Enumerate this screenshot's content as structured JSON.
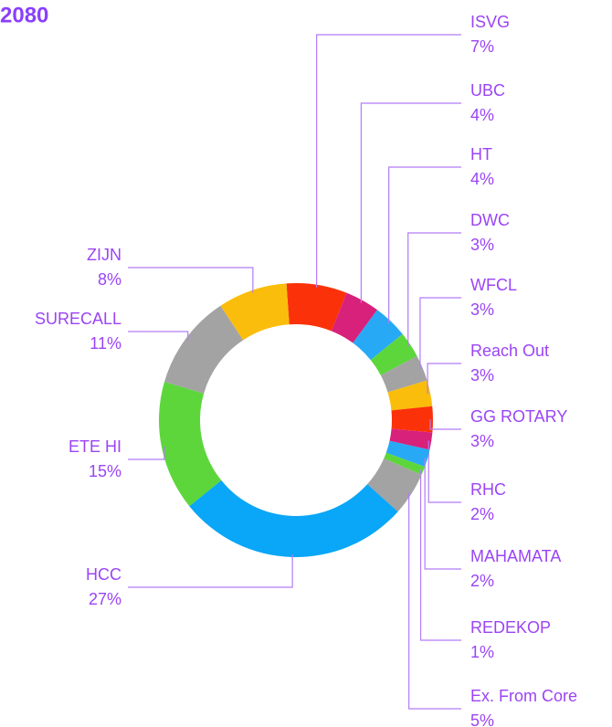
{
  "chart_data": {
    "type": "donut",
    "title": "2080",
    "categories": [
      "ISVG",
      "UBC",
      "HT",
      "DWC",
      "WFCL",
      "Reach Out",
      "GG ROTARY",
      "RHC",
      "MAHAMATA",
      "REDEKOP",
      "Ex. From Core",
      "HCC",
      "ETE HI",
      "SURECALL",
      "ZIJN"
    ],
    "values": [
      7,
      4,
      4,
      3,
      3,
      3,
      3,
      2,
      2,
      1,
      5,
      27,
      15,
      11,
      8
    ],
    "value_labels": [
      "7%",
      "4%",
      "4%",
      "3%",
      "3%",
      "3%",
      "3%",
      "2%",
      "2%",
      "1%",
      "5%",
      "27%",
      "15%",
      "11%",
      "8%"
    ],
    "colors": [
      "#fb3209",
      "#d8217a",
      "#27a9f5",
      "#5dd63c",
      "#a3a3a3",
      "#fbbd0b",
      "#fb3209",
      "#d8217a",
      "#27a9f5",
      "#5dd63c",
      "#a3a3a3",
      "#0aa6f7",
      "#5dd63c",
      "#a3a3a3",
      "#fbbd0b"
    ]
  }
}
